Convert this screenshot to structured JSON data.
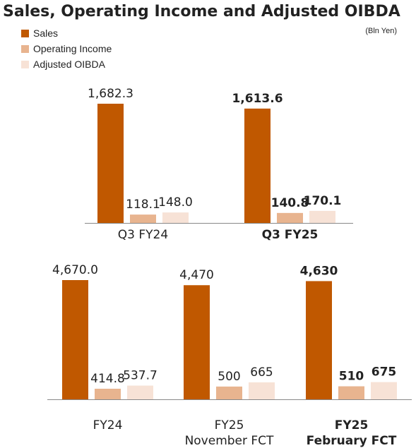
{
  "title": "Sales, Operating Income and Adjusted OIBDA",
  "unit": "(Bln Yen)",
  "colors": {
    "sales": "#c05800",
    "operating_income": "#e8b48f",
    "adjusted_oibda": "#f7e2d6",
    "axis": "#888888"
  },
  "legend": [
    {
      "label": "Sales",
      "color": "#c05800"
    },
    {
      "label": "Operating Income",
      "color": "#e8b48f"
    },
    {
      "label": "Adjusted OIBDA",
      "color": "#f7e2d6"
    }
  ],
  "chart_data": [
    {
      "type": "bar",
      "categories": [
        "Q3 FY24",
        "Q3 FY25"
      ],
      "category_bold": [
        false,
        true
      ],
      "series": [
        {
          "name": "Sales",
          "values": [
            1682.3,
            1613.6
          ],
          "labels": [
            "1,682.3",
            "1,613.6"
          ]
        },
        {
          "name": "Operating Income",
          "values": [
            118.1,
            140.8
          ],
          "labels": [
            "118.1",
            "140.8"
          ]
        },
        {
          "name": "Adjusted OIBDA",
          "values": [
            148.0,
            170.1
          ],
          "labels": [
            "148.0",
            "170.1"
          ]
        }
      ]
    },
    {
      "type": "bar",
      "categories": [
        [
          "FY24"
        ],
        [
          "FY25",
          "November FCT"
        ],
        [
          "FY25",
          "February FCT"
        ]
      ],
      "category_bold": [
        false,
        false,
        true
      ],
      "series": [
        {
          "name": "Sales",
          "values": [
            4670.0,
            4470,
            4630
          ],
          "labels": [
            "4,670.0",
            "4,470",
            "4,630"
          ]
        },
        {
          "name": "Operating Income",
          "values": [
            414.8,
            500,
            510
          ],
          "labels": [
            "414.8",
            "500",
            "510"
          ]
        },
        {
          "name": "Adjusted OIBDA",
          "values": [
            537.7,
            665,
            675
          ],
          "labels": [
            "537.7",
            "665",
            "675"
          ]
        }
      ]
    }
  ]
}
